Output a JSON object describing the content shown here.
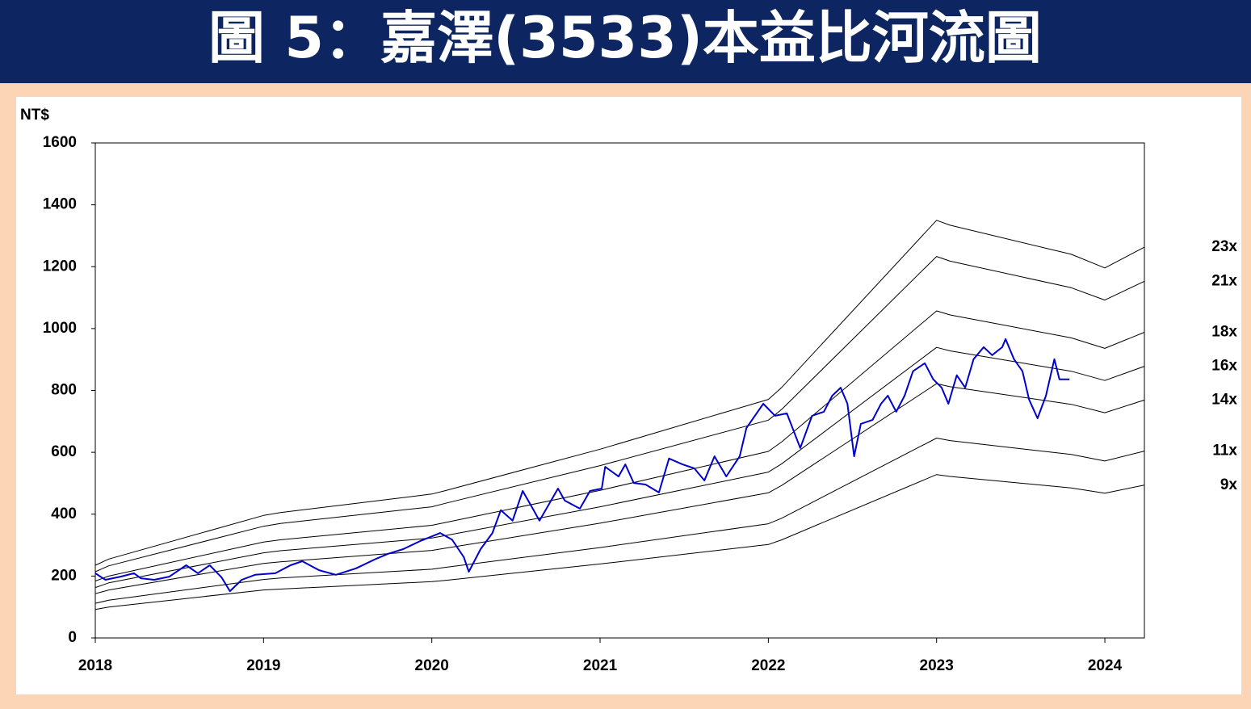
{
  "chart_data": {
    "type": "line",
    "title": "圖 5：嘉澤(3533)本益比河流圖",
    "y_label": "NT$",
    "xlim": [
      2018,
      2024.235
    ],
    "xticks": [
      2018,
      2019,
      2020,
      2021,
      2022,
      2023,
      2024
    ],
    "ylim": [
      0,
      1600
    ],
    "yticks": [
      0,
      200,
      400,
      600,
      800,
      1000,
      1200,
      1400,
      1600
    ],
    "grid": false,
    "series": [
      {
        "name": "23x",
        "color": "#000000",
        "x": [
          2018,
          2018.08,
          2019,
          2019.1,
          2020,
          2020.08,
          2021,
          2022,
          2022.08,
          2023,
          2023.08,
          2023.8,
          2024,
          2024.235
        ],
        "values": [
          235,
          255,
          396,
          405,
          465,
          476,
          610,
          771,
          810,
          1350,
          1334,
          1240,
          1196,
          1263
        ]
      },
      {
        "name": "21x",
        "color": "#000000",
        "x": [
          2018,
          2018.08,
          2019,
          2019.1,
          2020,
          2020.08,
          2021,
          2022,
          2022.08,
          2023,
          2023.08,
          2023.8,
          2024,
          2024.235
        ],
        "values": [
          214,
          233,
          361,
          370,
          424,
          435,
          557,
          704,
          739,
          1233,
          1218,
          1132,
          1092,
          1153
        ]
      },
      {
        "name": "18x",
        "color": "#000000",
        "x": [
          2018,
          2018.08,
          2019,
          2019.1,
          2020,
          2020.08,
          2021,
          2022,
          2022.08,
          2023,
          2023.08,
          2023.8,
          2024,
          2024.235
        ],
        "values": [
          184,
          200,
          310,
          317,
          364,
          373,
          477,
          603,
          634,
          1057,
          1044,
          970,
          936,
          988
        ]
      },
      {
        "name": "16x",
        "color": "#000000",
        "x": [
          2018,
          2018.08,
          2019,
          2019.1,
          2020,
          2020.08,
          2021,
          2022,
          2022.08,
          2023,
          2023.08,
          2023.8,
          2024,
          2024.235
        ],
        "values": [
          163,
          178,
          275,
          282,
          323,
          331,
          424,
          536,
          563,
          939,
          928,
          862,
          832,
          878
        ]
      },
      {
        "name": "14x",
        "color": "#000000",
        "x": [
          2018,
          2018.08,
          2019,
          2019.1,
          2020,
          2020.08,
          2021,
          2022,
          2022.08,
          2023,
          2023.08,
          2023.8,
          2024,
          2024.235
        ],
        "values": [
          143,
          155,
          241,
          246,
          283,
          290,
          371,
          469,
          493,
          822,
          812,
          755,
          728,
          769
        ]
      },
      {
        "name": "11x",
        "color": "#000000",
        "x": [
          2018,
          2018.08,
          2019,
          2019.1,
          2020,
          2020.08,
          2021,
          2022,
          2022.08,
          2023,
          2023.08,
          2023.8,
          2024,
          2024.235
        ],
        "values": [
          112,
          122,
          189,
          194,
          222,
          228,
          292,
          369,
          387,
          646,
          638,
          593,
          572,
          604
        ]
      },
      {
        "name": "9x",
        "color": "#000000",
        "x": [
          2018,
          2018.08,
          2019,
          2019.1,
          2020,
          2020.08,
          2021,
          2022,
          2022.08,
          2023,
          2023.08,
          2023.8,
          2024,
          2024.235
        ],
        "values": [
          92,
          100,
          155,
          158,
          182,
          186,
          239,
          302,
          317,
          528,
          522,
          485,
          468,
          494
        ]
      },
      {
        "color": "#0000cc",
        "x": [
          2018.0,
          2018.06,
          2018.15,
          2018.23,
          2018.27,
          2018.35,
          2018.44,
          2018.54,
          2018.61,
          2018.68,
          2018.75,
          2018.8,
          2018.87,
          2018.95,
          2019.07,
          2019.16,
          2019.23,
          2019.33,
          2019.43,
          2019.55,
          2019.67,
          2019.74,
          2019.83,
          2019.93,
          2020.05,
          2020.12,
          2020.19,
          2020.22,
          2020.29,
          2020.36,
          2020.41,
          2020.48,
          2020.54,
          2020.6,
          2020.64,
          2020.75,
          2020.79,
          2020.88,
          2020.94,
          2021.01,
          2021.03,
          2021.11,
          2021.15,
          2021.2,
          2021.27,
          2021.35,
          2021.41,
          2021.49,
          2021.56,
          2021.62,
          2021.68,
          2021.75,
          2021.83,
          2021.87,
          2021.97,
          2022.04,
          2022.11,
          2022.19,
          2022.26,
          2022.33,
          2022.38,
          2022.43,
          2022.47,
          2022.51,
          2022.55,
          2022.62,
          2022.67,
          2022.71,
          2022.76,
          2022.81,
          2022.86,
          2022.93,
          2022.98,
          2023.03,
          2023.07,
          2023.12,
          2023.17,
          2023.22,
          2023.28,
          2023.33,
          2023.39,
          2023.41,
          2023.46,
          2023.51,
          2023.55,
          2023.6,
          2023.65,
          2023.7,
          2023.73,
          2023.79
        ],
        "values": [
          209,
          188,
          198,
          209,
          193,
          188,
          198,
          235,
          209,
          235,
          196,
          151,
          188,
          204,
          209,
          235,
          248,
          219,
          204,
          225,
          256,
          272,
          287,
          313,
          339,
          318,
          261,
          214,
          287,
          339,
          413,
          379,
          475,
          418,
          379,
          483,
          444,
          418,
          475,
          483,
          553,
          522,
          561,
          501,
          496,
          470,
          580,
          561,
          548,
          509,
          587,
          522,
          587,
          679,
          757,
          718,
          726,
          614,
          718,
          731,
          783,
          809,
          757,
          587,
          692,
          705,
          757,
          783,
          731,
          783,
          862,
          888,
          836,
          809,
          757,
          849,
          809,
          901,
          940,
          914,
          940,
          966,
          901,
          862,
          770,
          710,
          783,
          901,
          836,
          836
        ]
      }
    ]
  }
}
